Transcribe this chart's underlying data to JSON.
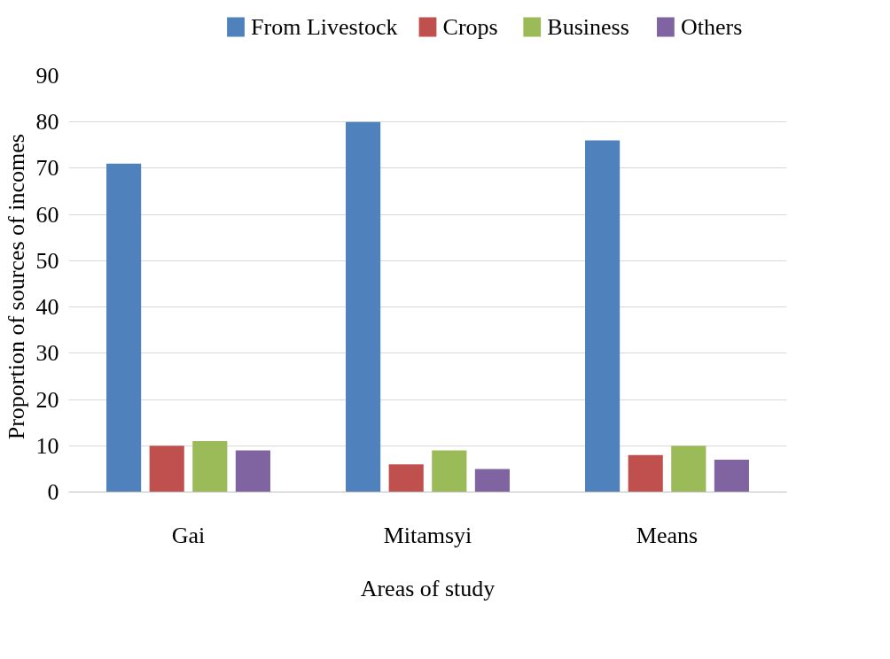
{
  "chart_data": {
    "type": "bar",
    "xlabel": "Areas of study",
    "ylabel": "Proportion of sources of  incomes",
    "categories": [
      "Gai",
      "Mitamsyi",
      "Means"
    ],
    "series": [
      {
        "name": "From Livestock",
        "color": "#4f81bd",
        "values": [
          71,
          80,
          76
        ]
      },
      {
        "name": "Crops",
        "color": "#c0504d",
        "values": [
          10,
          6,
          8
        ]
      },
      {
        "name": "Business",
        "color": "#9bbb59",
        "values": [
          11,
          9,
          10
        ]
      },
      {
        "name": "Others",
        "color": "#8064a2",
        "values": [
          9,
          5,
          7
        ]
      }
    ],
    "ylim": [
      0,
      90
    ],
    "yticks": [
      0,
      10,
      20,
      30,
      40,
      50,
      60,
      70,
      80,
      90
    ],
    "grid": "y",
    "legend": "top"
  }
}
